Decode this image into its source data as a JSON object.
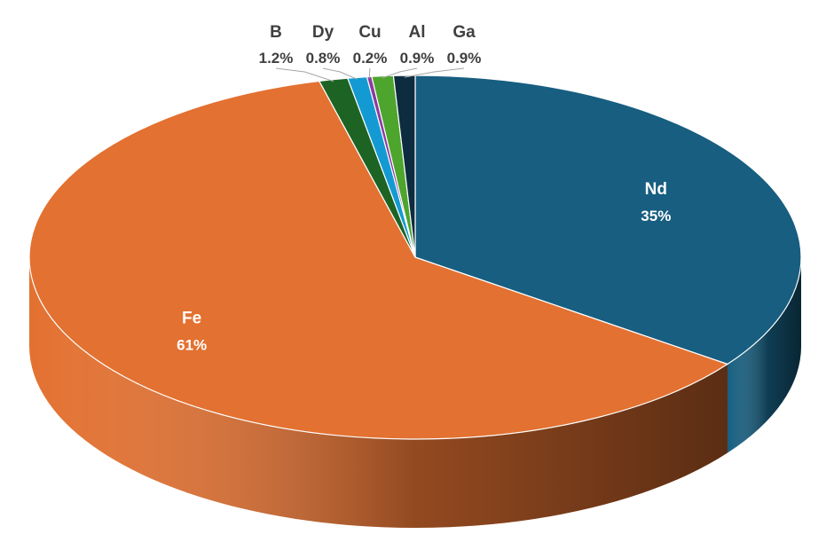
{
  "chart_data": {
    "type": "pie",
    "title": "",
    "style": "3d",
    "slices": [
      {
        "label": "Nd",
        "value": 35,
        "display": "35%",
        "color": "#175e80",
        "label_color": "#ffffff"
      },
      {
        "label": "Fe",
        "value": 61,
        "display": "61%",
        "color": "#e37131",
        "label_color": "#ffffff"
      },
      {
        "label": "B",
        "value": 1.2,
        "display": "1.2%",
        "color": "#1d6424",
        "label_color": "#404040"
      },
      {
        "label": "Dy",
        "value": 0.8,
        "display": "0.8%",
        "color": "#149ad2",
        "label_color": "#404040"
      },
      {
        "label": "Cu",
        "value": 0.2,
        "display": "0.2%",
        "color": "#8c3aa0",
        "label_color": "#404040"
      },
      {
        "label": "Al",
        "value": 0.9,
        "display": "0.9%",
        "color": "#4ea52e",
        "label_color": "#404040"
      },
      {
        "label": "Ga",
        "value": 0.9,
        "display": "0.9%",
        "color": "#0e2c40",
        "label_color": "#404040"
      }
    ]
  }
}
